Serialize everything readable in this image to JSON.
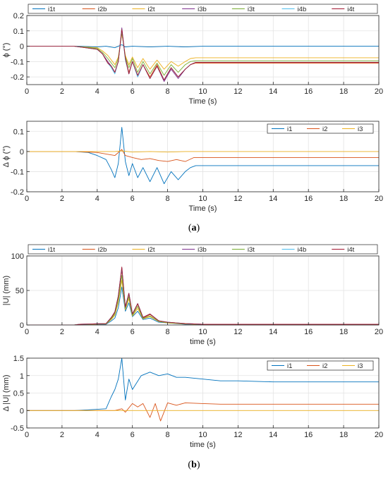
{
  "captions": {
    "a": "a",
    "b": "b"
  },
  "colors": {
    "i1t": "#0072BD",
    "i2b": "#D95319",
    "i2t": "#EDB120",
    "i3b": "#7E2F8E",
    "i3t": "#77AC30",
    "i4b": "#4DBEEE",
    "i4t": "#A2142F",
    "i1": "#0072BD",
    "i2": "#D95319",
    "i3": "#EDB120"
  },
  "chart_data": [
    {
      "type": "line",
      "xlabel": "Time (s)",
      "ylabel": "ϕ (°)",
      "xlim": [
        0,
        20
      ],
      "ylim": [
        -0.25,
        0.2
      ],
      "xticks": [
        0,
        2,
        4,
        6,
        8,
        10,
        12,
        14,
        16,
        18,
        20
      ],
      "yticks": [
        -0.2,
        -0.1,
        0,
        0.1,
        0.2
      ],
      "grid": true,
      "legend": "top",
      "legend_columns": 7,
      "series": [
        {
          "name": "i1t",
          "x": [
            0,
            2.7,
            3,
            4,
            4.5,
            5,
            5.2,
            5.4,
            5.6,
            6,
            7,
            8,
            9,
            10,
            20
          ],
          "y": [
            0,
            0,
            0,
            -0.005,
            0,
            -0.01,
            0,
            0.01,
            -0.005,
            0,
            -0.005,
            0,
            -0.005,
            0,
            0
          ]
        },
        {
          "name": "i2b",
          "x": [
            0,
            2.7,
            3,
            4,
            4.3,
            4.6,
            4.8,
            5,
            5.2,
            5.4,
            5.6,
            5.8,
            6,
            6.3,
            6.6,
            7,
            7.4,
            7.8,
            8.2,
            8.6,
            9,
            9.3,
            9.6,
            20
          ],
          "y": [
            0,
            0,
            -0.005,
            -0.02,
            -0.05,
            -0.11,
            -0.13,
            -0.17,
            -0.1,
            0.11,
            -0.08,
            -0.17,
            -0.1,
            -0.19,
            -0.12,
            -0.2,
            -0.12,
            -0.22,
            -0.14,
            -0.2,
            -0.15,
            -0.12,
            -0.11,
            -0.11
          ]
        },
        {
          "name": "i2t",
          "x": [
            0,
            2.7,
            3,
            4,
            4.3,
            4.6,
            4.8,
            5,
            5.2,
            5.4,
            5.6,
            5.8,
            6,
            6.3,
            6.6,
            7,
            7.4,
            7.8,
            8.2,
            8.6,
            9,
            9.3,
            9.6,
            20
          ],
          "y": [
            0,
            0,
            -0.003,
            -0.01,
            -0.03,
            -0.06,
            -0.09,
            -0.12,
            -0.07,
            0.08,
            -0.06,
            -0.12,
            -0.07,
            -0.14,
            -0.08,
            -0.15,
            -0.09,
            -0.15,
            -0.1,
            -0.13,
            -0.1,
            -0.08,
            -0.075,
            -0.075
          ]
        },
        {
          "name": "i3b",
          "x": [
            0,
            2.7,
            3,
            4,
            4.3,
            4.6,
            4.8,
            5,
            5.2,
            5.4,
            5.6,
            5.8,
            6,
            6.3,
            6.6,
            7,
            7.4,
            7.8,
            8.2,
            8.6,
            9,
            9.3,
            9.6,
            20
          ],
          "y": [
            0,
            0,
            -0.005,
            -0.02,
            -0.05,
            -0.1,
            -0.13,
            -0.17,
            -0.1,
            0.12,
            -0.08,
            -0.18,
            -0.1,
            -0.2,
            -0.12,
            -0.21,
            -0.13,
            -0.23,
            -0.15,
            -0.21,
            -0.15,
            -0.12,
            -0.105,
            -0.105
          ]
        },
        {
          "name": "i3t",
          "x": [
            0,
            2.7,
            3,
            4,
            4.3,
            4.6,
            4.8,
            5,
            5.2,
            5.4,
            5.6,
            5.8,
            6,
            6.3,
            6.6,
            7,
            7.4,
            7.8,
            8.2,
            8.6,
            9,
            9.3,
            9.6,
            20
          ],
          "y": [
            0,
            0,
            -0.004,
            -0.015,
            -0.04,
            -0.08,
            -0.11,
            -0.14,
            -0.08,
            0.09,
            -0.07,
            -0.14,
            -0.08,
            -0.17,
            -0.1,
            -0.18,
            -0.11,
            -0.19,
            -0.12,
            -0.17,
            -0.12,
            -0.1,
            -0.095,
            -0.095
          ]
        },
        {
          "name": "i4b",
          "x": [
            0,
            2.7,
            3,
            4,
            4.3,
            4.6,
            4.8,
            5,
            5.2,
            5.4,
            5.6,
            5.8,
            6,
            6.3,
            6.6,
            7,
            7.4,
            7.8,
            8.2,
            8.6,
            9,
            9.3,
            9.6,
            20
          ],
          "y": [
            0,
            0,
            -0.005,
            -0.02,
            -0.05,
            -0.11,
            -0.14,
            -0.18,
            -0.1,
            0.11,
            -0.09,
            -0.18,
            -0.1,
            -0.2,
            -0.12,
            -0.21,
            -0.13,
            -0.22,
            -0.14,
            -0.2,
            -0.15,
            -0.12,
            -0.105,
            -0.105
          ]
        },
        {
          "name": "i4t",
          "x": [
            0,
            2.7,
            3,
            4,
            4.3,
            4.6,
            4.8,
            5,
            5.2,
            5.4,
            5.6,
            5.8,
            6,
            6.3,
            6.6,
            7,
            7.4,
            7.8,
            8.2,
            8.6,
            9,
            9.3,
            9.6,
            20
          ],
          "y": [
            0,
            0,
            -0.005,
            -0.02,
            -0.05,
            -0.11,
            -0.13,
            -0.17,
            -0.1,
            0.11,
            -0.08,
            -0.18,
            -0.1,
            -0.19,
            -0.12,
            -0.21,
            -0.13,
            -0.22,
            -0.14,
            -0.2,
            -0.15,
            -0.12,
            -0.105,
            -0.105
          ]
        }
      ]
    },
    {
      "type": "line",
      "xlabel": "Time (s)",
      "ylabel": "Δ ϕ (°)",
      "xlim": [
        0,
        20
      ],
      "ylim": [
        -0.2,
        0.15
      ],
      "xticks": [
        0,
        2,
        4,
        6,
        8,
        10,
        12,
        14,
        16,
        18,
        20
      ],
      "yticks": [
        -0.2,
        -0.1,
        0,
        0.1
      ],
      "grid": true,
      "legend": "top-right",
      "legend_columns": 3,
      "series": [
        {
          "name": "i1",
          "x": [
            0,
            2.7,
            3.5,
            4,
            4.5,
            4.8,
            5,
            5.2,
            5.4,
            5.6,
            5.8,
            6,
            6.3,
            6.6,
            7,
            7.4,
            7.8,
            8.2,
            8.6,
            9,
            9.3,
            9.6,
            20
          ],
          "y": [
            0,
            0,
            -0.005,
            -0.02,
            -0.04,
            -0.09,
            -0.13,
            -0.06,
            0.12,
            -0.05,
            -0.12,
            -0.06,
            -0.13,
            -0.08,
            -0.15,
            -0.08,
            -0.16,
            -0.1,
            -0.14,
            -0.1,
            -0.08,
            -0.07,
            -0.07
          ]
        },
        {
          "name": "i2",
          "x": [
            0,
            2.7,
            4,
            5,
            5.4,
            5.6,
            6,
            6.5,
            7,
            7.5,
            8,
            8.5,
            9,
            9.5,
            20
          ],
          "y": [
            0,
            0,
            -0.005,
            -0.02,
            0.01,
            -0.02,
            -0.03,
            -0.04,
            -0.035,
            -0.045,
            -0.05,
            -0.04,
            -0.05,
            -0.03,
            -0.03
          ]
        },
        {
          "name": "i3",
          "x": [
            0,
            2.7,
            5,
            5.4,
            6,
            7,
            8,
            9,
            20
          ],
          "y": [
            0,
            0,
            0,
            0.003,
            -0.003,
            0,
            -0.003,
            0,
            0
          ]
        }
      ]
    },
    {
      "type": "line",
      "xlabel": "time (s)",
      "ylabel": "|U| (mm)",
      "xlim": [
        0,
        20
      ],
      "ylim": [
        0,
        100
      ],
      "xticks": [
        0,
        2,
        4,
        6,
        8,
        10,
        12,
        14,
        16,
        18,
        20
      ],
      "yticks": [
        0,
        50,
        100
      ],
      "grid": true,
      "legend": "top",
      "legend_columns": 7,
      "series": [
        {
          "name": "i1t",
          "x": [
            0,
            2.7,
            3,
            4.5,
            4.8,
            5,
            5.2,
            5.4,
            5.6,
            5.8,
            6,
            6.3,
            6.6,
            7,
            7.5,
            8,
            9,
            10,
            20
          ],
          "y": [
            0,
            0,
            0.5,
            1,
            6,
            10,
            25,
            55,
            20,
            32,
            12,
            20,
            8,
            10,
            4,
            3,
            1,
            0.5,
            0.5
          ]
        },
        {
          "name": "i2b",
          "x": [
            0,
            2.7,
            3,
            4.5,
            4.8,
            5,
            5.2,
            5.4,
            5.6,
            5.8,
            6,
            6.3,
            6.6,
            7,
            7.5,
            8,
            9,
            10,
            20
          ],
          "y": [
            0,
            0,
            1,
            2,
            10,
            18,
            40,
            80,
            25,
            45,
            15,
            30,
            10,
            15,
            6,
            4,
            2,
            1,
            1
          ]
        },
        {
          "name": "i2t",
          "x": [
            0,
            2.7,
            3,
            4.5,
            4.8,
            5,
            5.2,
            5.4,
            5.6,
            5.8,
            6,
            6.3,
            6.6,
            7,
            7.5,
            8,
            9,
            10,
            20
          ],
          "y": [
            0,
            0,
            0.7,
            1.5,
            8,
            14,
            32,
            65,
            22,
            38,
            13,
            24,
            9,
            12,
            5,
            3,
            1.5,
            0.7,
            0.7
          ]
        },
        {
          "name": "i3b",
          "x": [
            0,
            2.7,
            3,
            4.5,
            4.8,
            5,
            5.2,
            5.4,
            5.6,
            5.8,
            6,
            6.3,
            6.6,
            7,
            7.5,
            8,
            9,
            10,
            20
          ],
          "y": [
            0,
            0,
            1,
            2,
            11,
            19,
            42,
            82,
            26,
            46,
            16,
            31,
            11,
            16,
            6,
            4,
            2,
            1,
            1
          ]
        },
        {
          "name": "i3t",
          "x": [
            0,
            2.7,
            3,
            4.5,
            4.8,
            5,
            5.2,
            5.4,
            5.6,
            5.8,
            6,
            6.3,
            6.6,
            7,
            7.5,
            8,
            9,
            10,
            20
          ],
          "y": [
            0,
            0,
            0.8,
            1.8,
            9,
            16,
            36,
            72,
            24,
            41,
            14,
            27,
            9.5,
            13,
            5.5,
            3.5,
            1.8,
            0.8,
            0.8
          ]
        },
        {
          "name": "i4b",
          "x": [
            0,
            2.7,
            3,
            4.5,
            4.8,
            5,
            5.2,
            5.4,
            5.6,
            5.8,
            6,
            6.3,
            6.6,
            7,
            7.5,
            8,
            9,
            10,
            20
          ],
          "y": [
            0,
            0,
            1,
            2,
            11,
            19,
            42,
            83,
            26,
            46,
            16,
            31,
            11,
            16,
            6,
            4,
            2,
            1,
            1
          ]
        },
        {
          "name": "i4t",
          "x": [
            0,
            2.7,
            3,
            4.5,
            4.8,
            5,
            5.2,
            5.4,
            5.6,
            5.8,
            6,
            6.3,
            6.6,
            7,
            7.5,
            8,
            9,
            10,
            20
          ],
          "y": [
            0,
            0,
            1,
            2,
            11,
            19,
            42,
            84,
            26,
            46,
            16,
            31,
            11,
            16,
            6,
            4,
            2,
            1,
            1
          ]
        }
      ]
    },
    {
      "type": "line",
      "xlabel": "time (s)",
      "ylabel": "Δ |U| (mm)",
      "xlim": [
        0,
        20
      ],
      "ylim": [
        -0.5,
        1.5
      ],
      "xticks": [
        0,
        2,
        4,
        6,
        8,
        10,
        12,
        14,
        16,
        18,
        20
      ],
      "yticks": [
        -0.5,
        0,
        0.5,
        1,
        1.5
      ],
      "grid": true,
      "legend": "top-right",
      "legend_columns": 3,
      "series": [
        {
          "name": "i1",
          "x": [
            0,
            2.7,
            3.5,
            4.5,
            4.8,
            5,
            5.2,
            5.4,
            5.6,
            5.8,
            6,
            6.5,
            7,
            7.5,
            8,
            8.5,
            9,
            10,
            11,
            12,
            14,
            20
          ],
          "y": [
            0,
            0,
            0.02,
            0.05,
            0.4,
            0.6,
            0.9,
            1.5,
            0.3,
            0.9,
            0.6,
            1.0,
            1.1,
            1.0,
            1.05,
            0.95,
            0.95,
            0.9,
            0.85,
            0.85,
            0.82,
            0.82
          ]
        },
        {
          "name": "i2",
          "x": [
            0,
            2.7,
            4,
            5,
            5.4,
            5.6,
            6,
            6.3,
            6.6,
            7,
            7.3,
            7.6,
            8,
            8.5,
            9,
            10,
            11,
            20
          ],
          "y": [
            0,
            0,
            0,
            0,
            0.05,
            -0.05,
            0.2,
            0.1,
            0.2,
            -0.2,
            0.2,
            -0.3,
            0.22,
            0.15,
            0.22,
            0.2,
            0.18,
            0.18
          ]
        },
        {
          "name": "i3",
          "x": [
            0,
            20
          ],
          "y": [
            0,
            0
          ]
        }
      ]
    }
  ]
}
